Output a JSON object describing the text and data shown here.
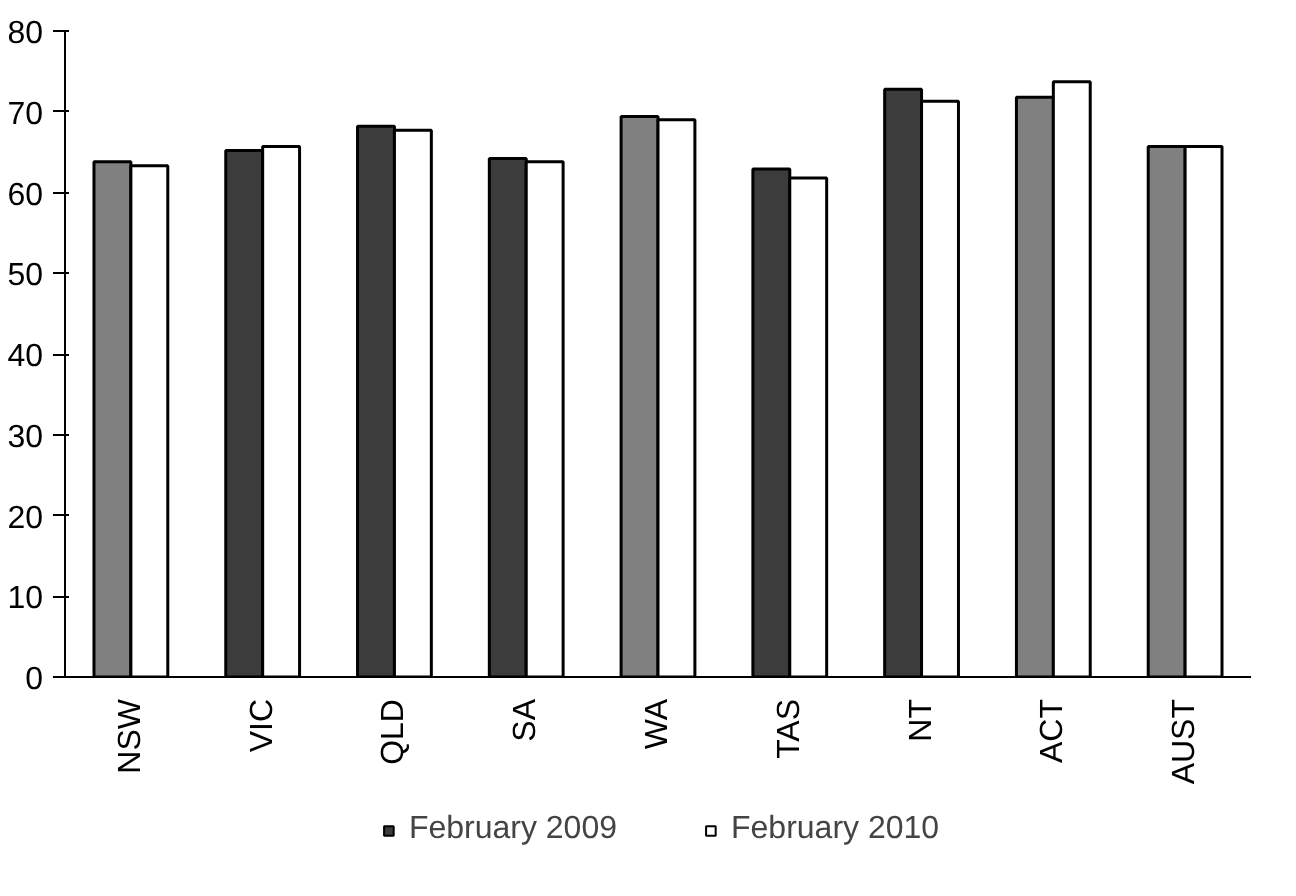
{
  "chart_data": {
    "type": "bar",
    "categories": [
      "NSW",
      "VIC",
      "QLD",
      "SA",
      "WA",
      "TAS",
      "NT",
      "ACT",
      "AUST"
    ],
    "series": [
      {
        "name": "February 2009",
        "color": "#3c3c3c",
        "colors": [
          "#808080",
          "#3c3c3c",
          "#3c3c3c",
          "#3c3c3c",
          "#808080",
          "#3c3c3c",
          "#3c3c3c",
          "#808080",
          "#808080"
        ],
        "values": [
          63.8,
          65.2,
          68.2,
          64.2,
          69.4,
          62.9,
          72.8,
          71.8,
          65.7
        ]
      },
      {
        "name": "February 2010",
        "color": "#ffffff",
        "values": [
          63.3,
          65.7,
          67.7,
          63.8,
          69.0,
          61.8,
          71.3,
          73.7,
          65.7
        ]
      }
    ],
    "ylim": [
      0,
      80
    ],
    "yticks": [
      0,
      10,
      20,
      30,
      40,
      50,
      60,
      70,
      80
    ],
    "grid": false,
    "legend": "bottom"
  }
}
